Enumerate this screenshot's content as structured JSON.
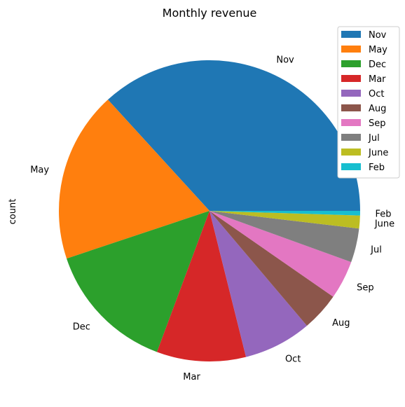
{
  "chart_data": {
    "type": "pie",
    "title": "Monthly revenue",
    "ylabel": "count",
    "legend_position": "top-right",
    "start_angle_deg": 0,
    "direction": "counterclockwise",
    "categories": [
      "Nov",
      "May",
      "Dec",
      "Mar",
      "Oct",
      "Aug",
      "Sep",
      "Jul",
      "June",
      "Feb"
    ],
    "values": [
      37.3,
      18.6,
      14.4,
      9.7,
      7.4,
      4.2,
      4.2,
      3.7,
      1.4,
      0.5
    ],
    "colors": [
      "#1f77b4",
      "#ff7f0e",
      "#2ca02c",
      "#d62728",
      "#9467bd",
      "#8c564b",
      "#e377c2",
      "#7f7f7f",
      "#bcbd22",
      "#17becf"
    ]
  }
}
